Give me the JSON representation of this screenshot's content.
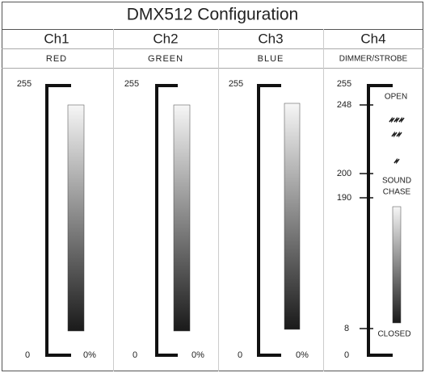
{
  "title": "DMX512 Configuration",
  "channels": [
    {
      "name": "Ch1",
      "function": "RED",
      "scale_top": "255",
      "scale_bottom": "0",
      "level_label": "0%"
    },
    {
      "name": "Ch2",
      "function": "GREEN",
      "scale_top": "255",
      "scale_bottom": "0",
      "level_label": "0%"
    },
    {
      "name": "Ch3",
      "function": "BLUE",
      "scale_top": "255",
      "scale_bottom": "0",
      "level_label": "0%"
    },
    {
      "name": "Ch4",
      "function": "DIMMER/STROBE",
      "scale_marks": [
        "255",
        "248",
        "200",
        "190",
        "8",
        "0"
      ],
      "annotations": [
        "OPEN",
        "SOUND",
        "CHASE",
        "CLOSED"
      ]
    }
  ]
}
